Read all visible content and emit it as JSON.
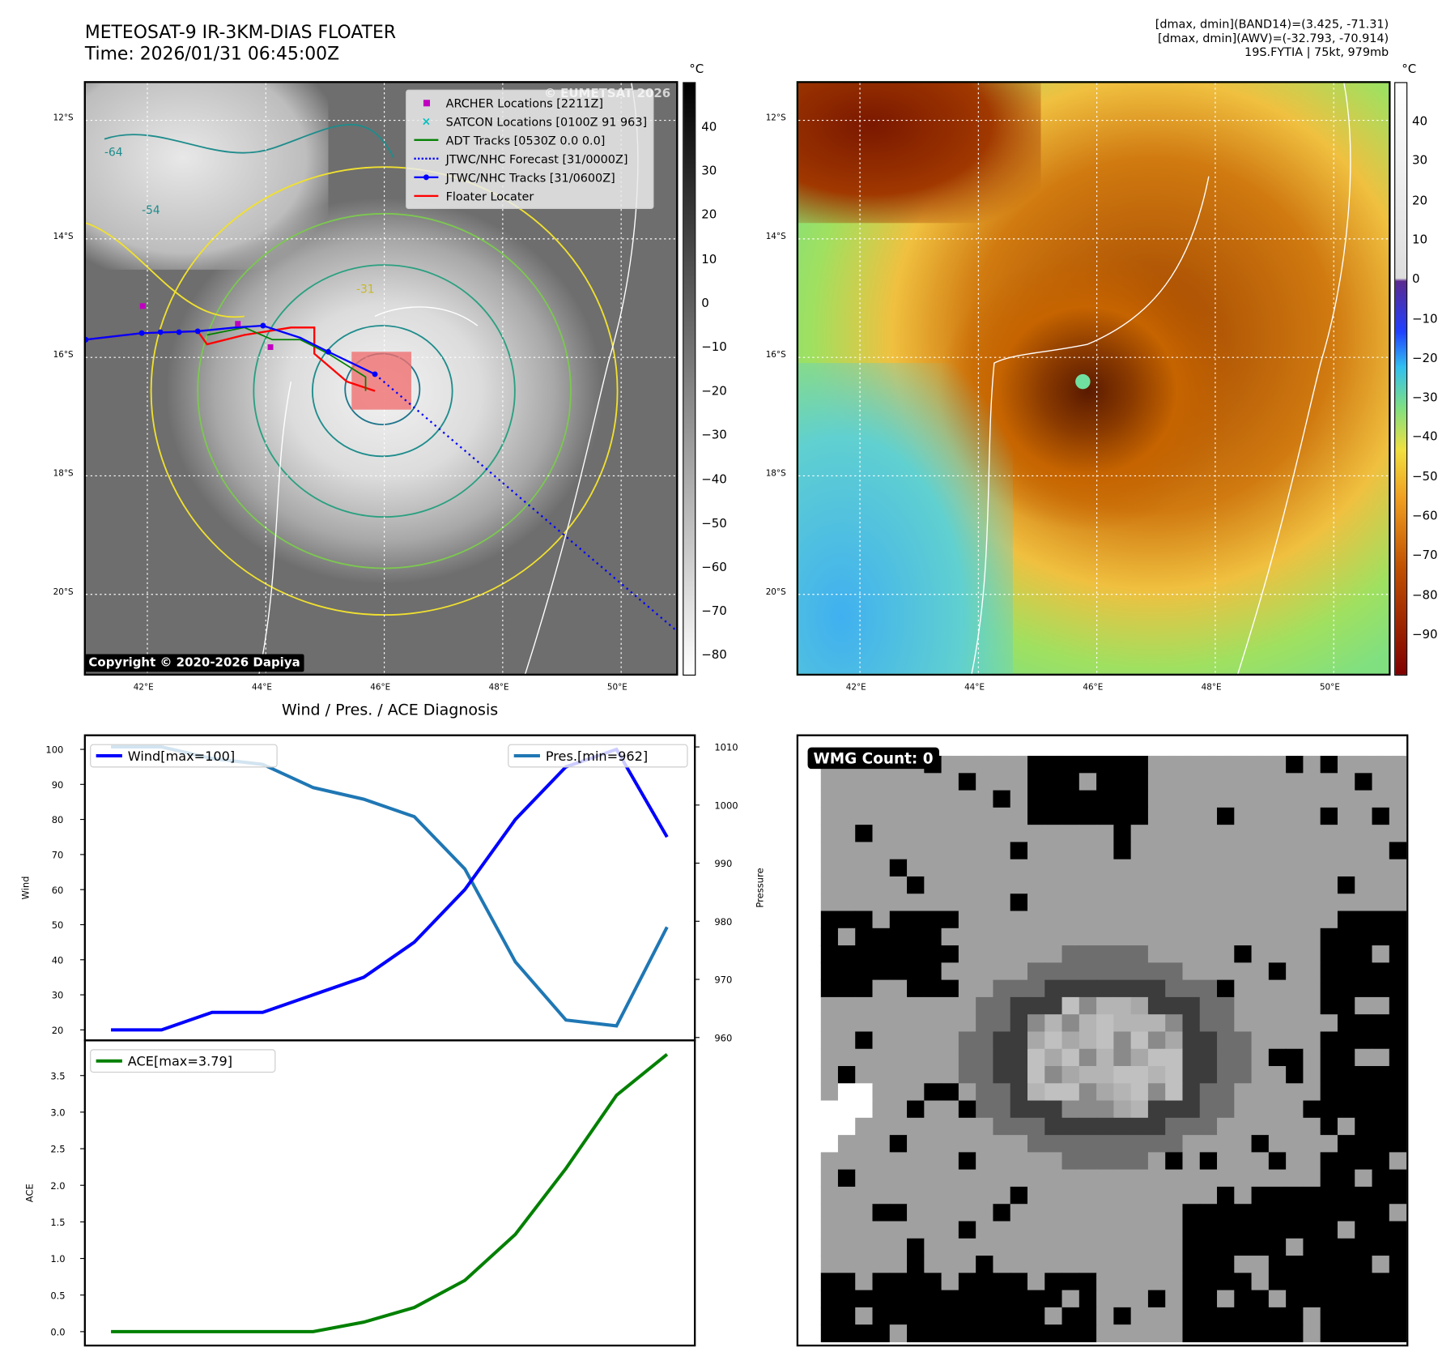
{
  "header": {
    "title_line1": "METEOSAT-9 IR-3KM-DIAS FLOATER",
    "title_line2": "Time: 2026/01/31 06:45:00Z",
    "stats_line1": "[dmax, dmin](BAND14)=(3.425, -71.31)",
    "stats_line2": "[dmax, dmin](AWV)=(-32.793, -70.914)",
    "stats_line3": "19S.FYTIA | 75kt, 979mb"
  },
  "map_ir": {
    "unit": "°C",
    "watermark": "© EUMETSAT 2026",
    "copyright": "Copyright © 2020-2026 Dapiya",
    "lat_labels": [
      "12°S",
      "14°S",
      "16°S",
      "18°S",
      "20°S"
    ],
    "lon_labels": [
      "42°E",
      "44°E",
      "46°E",
      "48°E",
      "50°E"
    ],
    "colorbar_ticks": [
      "40",
      "30",
      "20",
      "10",
      "0",
      "−10",
      "−20",
      "−30",
      "−40",
      "−50",
      "−60",
      "−70",
      "−80"
    ],
    "contour_labels": [
      "-64",
      "-54",
      "-31"
    ],
    "legend": [
      {
        "label": "ARCHER Locations [2211Z]",
        "color": "#c000c0",
        "icon": "square-marker"
      },
      {
        "label": "SATCON Locations [0100Z 91 963]",
        "color": "#00c0c0",
        "icon": "x-marker"
      },
      {
        "label": "ADT Tracks [0530Z 0.0 0.0]",
        "color": "#007f00",
        "icon": "line"
      },
      {
        "label": "JTWC/NHC Forecast [31/0000Z]",
        "color": "#0000ff",
        "icon": "dotted-line"
      },
      {
        "label": "JTWC/NHC Tracks [31/0600Z]",
        "color": "#0000ff",
        "icon": "line-dot"
      },
      {
        "label": "Floater Locater",
        "color": "#ff0000",
        "icon": "line"
      }
    ]
  },
  "map_awv": {
    "unit": "°C",
    "lat_labels": [
      "12°S",
      "14°S",
      "16°S",
      "18°S",
      "20°S"
    ],
    "lon_labels": [
      "42°E",
      "44°E",
      "46°E",
      "48°E",
      "50°E"
    ],
    "colorbar_ticks": [
      "40",
      "30",
      "20",
      "10",
      "0",
      "−10",
      "−20",
      "−30",
      "−40",
      "−50",
      "−60",
      "−70",
      "−80",
      "−90"
    ]
  },
  "chart_data": [
    {
      "type": "line",
      "title": "Wind / Pres. / ACE Diagnosis",
      "x": [
        0,
        1,
        2,
        3,
        4,
        5,
        6,
        7,
        8,
        9,
        10,
        11
      ],
      "series": [
        {
          "name": "Wind[max=100]",
          "axis": "left",
          "color": "#0000ff",
          "values": [
            20,
            20,
            25,
            25,
            30,
            35,
            45,
            60,
            80,
            95,
            100,
            75
          ]
        },
        {
          "name": "Pres.[min=962]",
          "axis": "right",
          "color": "#1f77b4",
          "values": [
            1010,
            1010,
            1008,
            1007,
            1003,
            1001,
            998,
            989,
            973,
            963,
            962,
            979
          ]
        }
      ],
      "ylabel": "Wind",
      "ylabel_right": "Pressure",
      "ylim": [
        17,
        104
      ],
      "ylim_right": [
        959.5,
        1012
      ],
      "yticks": [
        "20",
        "30",
        "40",
        "50",
        "60",
        "70",
        "80",
        "90",
        "100"
      ],
      "yticks_right": [
        "960",
        "970",
        "980",
        "990",
        "1000",
        "1010"
      ]
    },
    {
      "type": "line",
      "x": [
        0,
        1,
        2,
        3,
        4,
        5,
        6,
        7,
        8,
        9,
        10,
        11
      ],
      "series": [
        {
          "name": "ACE[max=3.79]",
          "color": "#008000",
          "values": [
            0,
            0,
            0,
            0,
            0,
            0.13,
            0.33,
            0.7,
            1.33,
            2.23,
            3.23,
            3.79
          ]
        }
      ],
      "ylabel": "ACE",
      "ylim": [
        -0.19,
        3.98
      ],
      "yticks": [
        "0.0",
        "0.5",
        "1.0",
        "1.5",
        "2.0",
        "2.5",
        "3.0",
        "3.5"
      ]
    }
  ],
  "wmg": {
    "label": "WMG Count: 0"
  }
}
